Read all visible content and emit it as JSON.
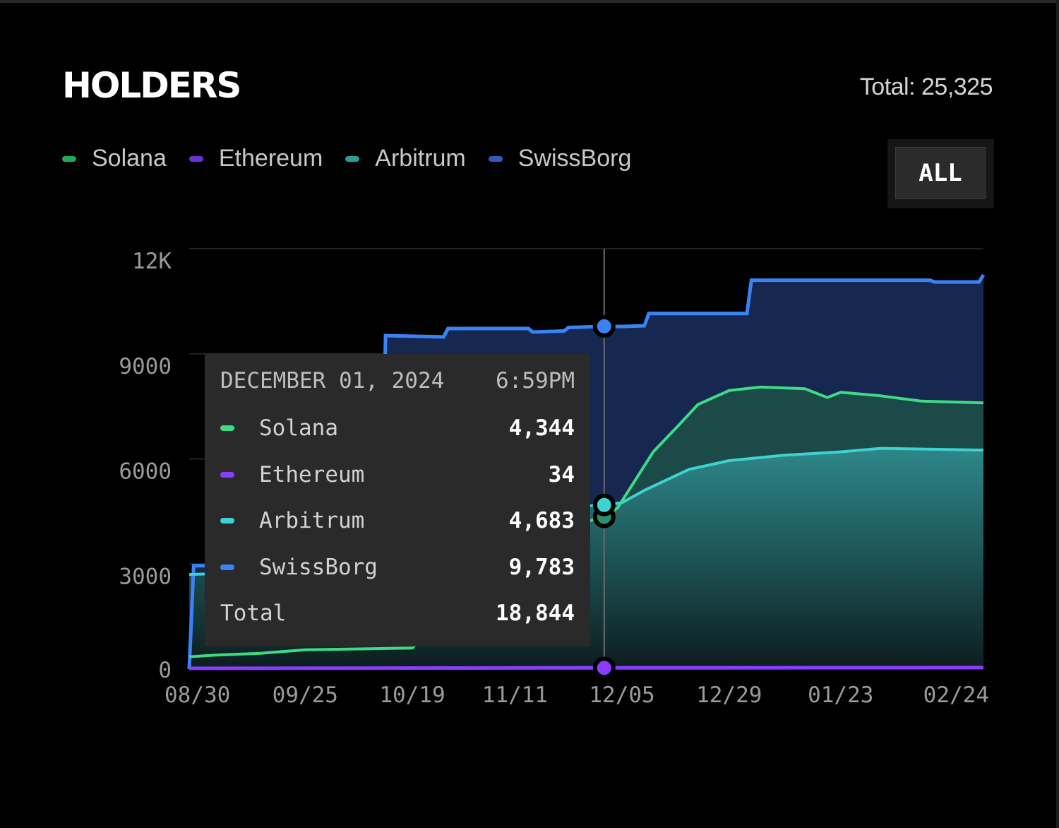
{
  "header": {
    "title": "HOLDERS",
    "total_text": "Total: 25,325"
  },
  "range_button": {
    "label": "ALL"
  },
  "tooltip": {
    "date": "DECEMBER 01, 2024",
    "time": "6:59PM",
    "rows": [
      {
        "name": "Solana",
        "value": "4,344",
        "color": "#3ddc84"
      },
      {
        "name": "Ethereum",
        "value": "34",
        "color": "#8b3dff"
      },
      {
        "name": "Arbitrum",
        "value": "4,683",
        "color": "#3ed2d0"
      },
      {
        "name": "SwissBorg",
        "value": "9,783",
        "color": "#3b82f6"
      }
    ],
    "total_label": "Total",
    "total_value": "18,844"
  },
  "chart_data": {
    "type": "area",
    "title": "HOLDERS",
    "x_tick_labels": [
      "08/30",
      "09/25",
      "10/19",
      "11/11",
      "12/05",
      "12/29",
      "01/23",
      "02/24"
    ],
    "y_tick_labels": [
      "0",
      "3000",
      "6000",
      "9000",
      "12K"
    ],
    "ylim": [
      0,
      12000
    ],
    "grid": true,
    "hover_x": "12/01",
    "series": [
      {
        "name": "SwissBorg",
        "color": "#3b82f6",
        "fill": "#162850",
        "points": [
          [
            "08/30",
            0
          ],
          [
            "08/31",
            2950
          ],
          [
            "09/01",
            2950
          ],
          [
            "10/12",
            2950
          ],
          [
            "10/13",
            9520
          ],
          [
            "10/26",
            9480
          ],
          [
            "10/27",
            9720
          ],
          [
            "11/14",
            9720
          ],
          [
            "11/15",
            9620
          ],
          [
            "11/22",
            9650
          ],
          [
            "11/23",
            9750
          ],
          [
            "12/01",
            9783
          ],
          [
            "12/05",
            9780
          ],
          [
            "12/10",
            9800
          ],
          [
            "12/11",
            10150
          ],
          [
            "01/02",
            10150
          ],
          [
            "01/03",
            11100
          ],
          [
            "02/12",
            11100
          ],
          [
            "02/13",
            11050
          ],
          [
            "02/23",
            11050
          ],
          [
            "02/24",
            11250
          ]
        ]
      },
      {
        "name": "Arbitrum",
        "color": "#3ed2d0",
        "fill": "#1c5f66",
        "points": [
          [
            "08/30",
            2700
          ],
          [
            "09/25",
            2800
          ],
          [
            "11/11",
            4550
          ],
          [
            "12/01",
            4683
          ],
          [
            "12/05",
            4750
          ],
          [
            "12/10",
            5100
          ],
          [
            "12/20",
            5700
          ],
          [
            "12/29",
            5950
          ],
          [
            "01/10",
            6100
          ],
          [
            "01/23",
            6200
          ],
          [
            "02/01",
            6300
          ],
          [
            "02/24",
            6250
          ]
        ]
      },
      {
        "name": "Solana",
        "color": "#3ddc84",
        "fill": "#1b4c48",
        "points": [
          [
            "08/30",
            350
          ],
          [
            "09/05",
            400
          ],
          [
            "09/15",
            450
          ],
          [
            "09/25",
            550
          ],
          [
            "10/19",
            600
          ],
          [
            "11/11",
            3650
          ],
          [
            "12/01",
            4344
          ],
          [
            "12/04",
            4600
          ],
          [
            "12/08",
            5400
          ],
          [
            "12/12",
            6200
          ],
          [
            "12/18",
            7000
          ],
          [
            "12/22",
            7550
          ],
          [
            "12/29",
            7950
          ],
          [
            "01/05",
            8050
          ],
          [
            "01/15",
            8000
          ],
          [
            "01/20",
            7750
          ],
          [
            "01/23",
            7900
          ],
          [
            "02/01",
            7800
          ],
          [
            "02/10",
            7650
          ],
          [
            "02/24",
            7600
          ]
        ]
      },
      {
        "name": "Ethereum",
        "color": "#8b3dff",
        "points": [
          [
            "08/30",
            20
          ],
          [
            "12/01",
            34
          ],
          [
            "02/24",
            40
          ]
        ]
      }
    ]
  }
}
